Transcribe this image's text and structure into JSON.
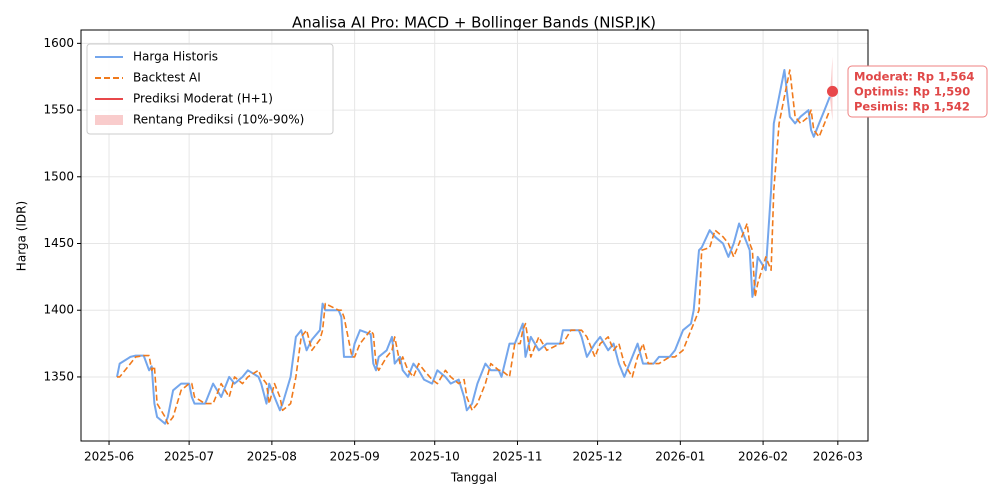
{
  "chart_data": {
    "type": "line",
    "title": "Analisa AI Pro: MACD + Bollinger Bands (NISP.JK)",
    "xlabel": "Tanggal",
    "ylabel": "Harga (IDR)",
    "xlim": [
      -10.5,
      284.3
    ],
    "xticks": [
      {
        "value": 0,
        "label": "2025-06"
      },
      {
        "value": 30,
        "label": "2025-07"
      },
      {
        "value": 61,
        "label": "2025-08"
      },
      {
        "value": 92,
        "label": "2025-09"
      },
      {
        "value": 122,
        "label": "2025-10"
      },
      {
        "value": 153,
        "label": "2025-11"
      },
      {
        "value": 183,
        "label": "2025-12"
      },
      {
        "value": 214,
        "label": "2026-01"
      },
      {
        "value": 245,
        "label": "2026-02"
      },
      {
        "value": 273,
        "label": "2026-03"
      }
    ],
    "ylim": [
      1302,
      1610
    ],
    "yticks": [
      1350,
      1400,
      1450,
      1500,
      1550,
      1600
    ],
    "grid": true,
    "legend": "upper left",
    "series": [
      {
        "name": "Harga Historis",
        "color": "#74a6ec",
        "dash": false,
        "x": [
          3,
          4,
          8,
          10,
          13,
          15,
          16,
          17,
          18,
          21,
          22,
          24,
          27,
          30,
          31,
          32,
          36,
          39,
          42,
          45,
          47,
          50,
          52,
          56,
          57,
          59,
          60,
          62,
          64,
          65,
          68,
          70,
          72,
          74,
          76,
          79,
          80,
          81,
          86,
          87,
          88,
          91,
          92,
          94,
          98,
          99,
          100,
          101,
          104,
          106,
          107,
          109,
          110,
          112,
          114,
          116,
          118,
          121,
          123,
          126,
          128,
          131,
          133,
          134,
          136,
          138,
          141,
          143,
          146,
          147,
          150,
          152,
          154,
          155,
          156,
          158,
          161,
          164,
          169,
          170,
          173,
          176,
          177,
          179,
          182,
          184,
          187,
          189,
          191,
          193,
          196,
          198,
          200,
          202,
          204,
          206,
          210,
          212,
          215,
          218,
          219,
          221,
          222,
          225,
          227,
          230,
          232,
          234,
          236,
          239,
          240,
          241,
          242,
          243,
          246,
          248,
          249,
          251,
          253,
          255,
          257,
          259,
          262,
          263,
          264,
          266,
          268,
          270
        ],
        "values": [
          1350,
          1360,
          1365,
          1366,
          1366,
          1355,
          1358,
          1330,
          1320,
          1315,
          1320,
          1340,
          1345,
          1345,
          1335,
          1330,
          1330,
          1345,
          1335,
          1350,
          1345,
          1350,
          1355,
          1350,
          1345,
          1330,
          1345,
          1335,
          1325,
          1330,
          1350,
          1380,
          1385,
          1370,
          1378,
          1385,
          1405,
          1400,
          1400,
          1395,
          1365,
          1365,
          1375,
          1385,
          1382,
          1360,
          1355,
          1365,
          1370,
          1380,
          1360,
          1365,
          1355,
          1350,
          1360,
          1355,
          1348,
          1345,
          1355,
          1350,
          1345,
          1348,
          1335,
          1325,
          1330,
          1345,
          1360,
          1355,
          1355,
          1350,
          1375,
          1375,
          1385,
          1390,
          1365,
          1380,
          1370,
          1375,
          1375,
          1385,
          1385,
          1385,
          1380,
          1365,
          1375,
          1380,
          1370,
          1375,
          1360,
          1350,
          1365,
          1375,
          1360,
          1360,
          1360,
          1365,
          1365,
          1370,
          1385,
          1390,
          1400,
          1445,
          1447,
          1460,
          1455,
          1450,
          1440,
          1450,
          1465,
          1450,
          1445,
          1410,
          1420,
          1440,
          1430,
          1490,
          1540,
          1560,
          1580,
          1545,
          1540,
          1545,
          1550,
          1535,
          1530,
          1540,
          1550,
          1560
        ]
      },
      {
        "name": "Backtest AI",
        "color": "#f07a1c",
        "dash": true,
        "x": [
          3,
          4,
          8,
          10,
          13,
          15,
          16,
          17,
          18,
          21,
          22,
          24,
          27,
          30,
          31,
          32,
          36,
          39,
          42,
          45,
          47,
          50,
          52,
          56,
          57,
          59,
          60,
          62,
          64,
          65,
          68,
          70,
          72,
          74,
          76,
          79,
          80,
          81,
          86,
          87,
          88,
          91,
          92,
          94,
          98,
          99,
          100,
          101,
          104,
          106,
          107,
          109,
          110,
          112,
          114,
          116,
          118,
          121,
          123,
          126,
          128,
          131,
          133,
          134,
          136,
          138,
          141,
          143,
          146,
          147,
          150,
          152,
          154,
          155,
          156,
          158,
          161,
          164,
          169,
          170,
          173,
          176,
          177,
          179,
          182,
          184,
          187,
          189,
          191,
          193,
          196,
          198,
          200,
          202,
          204,
          206,
          210,
          212,
          215,
          218,
          219,
          221,
          222,
          225,
          227,
          230,
          232,
          234,
          236,
          239,
          240,
          241,
          242,
          243,
          246,
          248,
          249,
          251,
          253,
          255,
          257,
          259,
          262,
          263,
          264,
          266,
          268,
          270
        ],
        "values": [
          1350,
          1350,
          1360,
          1365,
          1366,
          1366,
          1355,
          1358,
          1330,
          1320,
          1315,
          1320,
          1340,
          1345,
          1345,
          1335,
          1330,
          1330,
          1345,
          1335,
          1350,
          1345,
          1350,
          1355,
          1350,
          1345,
          1330,
          1345,
          1335,
          1325,
          1330,
          1350,
          1380,
          1385,
          1370,
          1378,
          1385,
          1405,
          1400,
          1400,
          1395,
          1365,
          1365,
          1375,
          1385,
          1382,
          1360,
          1355,
          1365,
          1370,
          1380,
          1360,
          1365,
          1355,
          1350,
          1360,
          1355,
          1348,
          1345,
          1355,
          1350,
          1345,
          1348,
          1335,
          1325,
          1330,
          1345,
          1360,
          1355,
          1355,
          1350,
          1375,
          1375,
          1385,
          1390,
          1365,
          1380,
          1370,
          1375,
          1375,
          1385,
          1385,
          1385,
          1380,
          1365,
          1375,
          1380,
          1370,
          1375,
          1360,
          1350,
          1365,
          1375,
          1360,
          1360,
          1360,
          1365,
          1365,
          1370,
          1385,
          1390,
          1400,
          1445,
          1447,
          1460,
          1455,
          1450,
          1440,
          1450,
          1465,
          1450,
          1445,
          1410,
          1420,
          1440,
          1430,
          1490,
          1540,
          1560,
          1580,
          1545,
          1540,
          1545,
          1550,
          1535,
          1530,
          1540,
          1550
        ]
      },
      {
        "name": "Prediksi Moderat (H+1)",
        "color": "#e8474a",
        "marker": true,
        "x": [
          271
        ],
        "values": [
          1564
        ]
      }
    ],
    "band": {
      "name": "Rentang Prediksi (10%-90%)",
      "color": "#f7b7b7",
      "x": [
        271
      ],
      "lower": [
        1542
      ],
      "upper": [
        1590
      ]
    },
    "annotation": [
      "Moderat: Rp 1,564",
      "Optimis: Rp 1,590",
      "Pesimis: Rp 1,542"
    ]
  }
}
